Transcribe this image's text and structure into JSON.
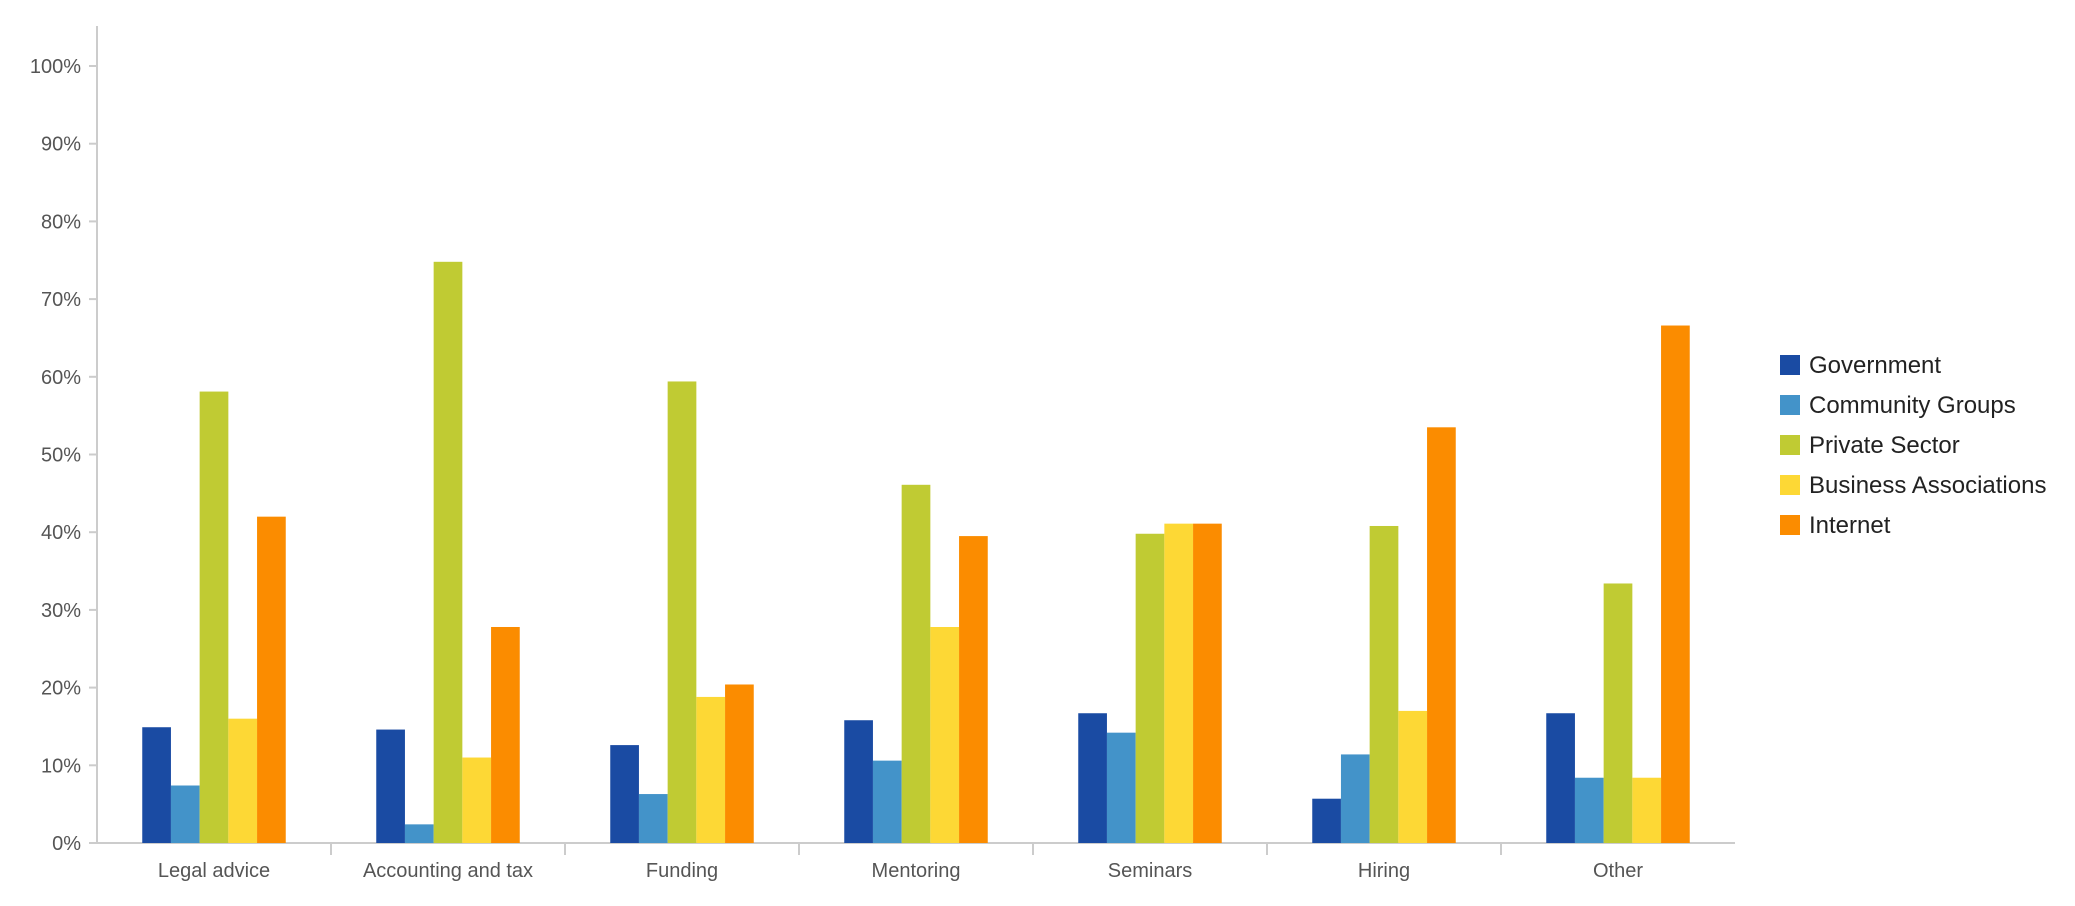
{
  "chart_data": {
    "type": "bar",
    "title": "",
    "xlabel": "",
    "ylabel": "",
    "ylim": [
      0,
      100
    ],
    "yticks": [
      0,
      10,
      20,
      30,
      40,
      50,
      60,
      70,
      80,
      90,
      100
    ],
    "ytick_labels": [
      "0%",
      "10%",
      "20%",
      "30%",
      "40%",
      "50%",
      "60%",
      "70%",
      "80%",
      "90%",
      "100%"
    ],
    "grid": false,
    "legend_position": "right",
    "categories": [
      "Legal advice",
      "Accounting and tax",
      "Funding",
      "Mentoring",
      "Seminars",
      "Hiring",
      "Other"
    ],
    "series": [
      {
        "name": "Government",
        "color": "#1a4ba3",
        "values": [
          14.9,
          14.6,
          12.6,
          15.8,
          16.7,
          5.7,
          16.7
        ]
      },
      {
        "name": "Community Groups",
        "color": "#4393c9",
        "values": [
          7.4,
          2.4,
          6.3,
          10.6,
          14.2,
          11.4,
          8.4
        ]
      },
      {
        "name": "Private Sector",
        "color": "#c0cb33",
        "values": [
          58.1,
          74.8,
          59.4,
          46.1,
          39.8,
          40.8,
          33.4
        ]
      },
      {
        "name": "Business Associations",
        "color": "#fdd835",
        "values": [
          16.0,
          11.0,
          18.8,
          27.8,
          41.1,
          17.0,
          8.4
        ]
      },
      {
        "name": "Internet",
        "color": "#fb8c00",
        "values": [
          42.0,
          27.8,
          20.4,
          39.5,
          41.1,
          53.5,
          66.6
        ]
      }
    ]
  }
}
